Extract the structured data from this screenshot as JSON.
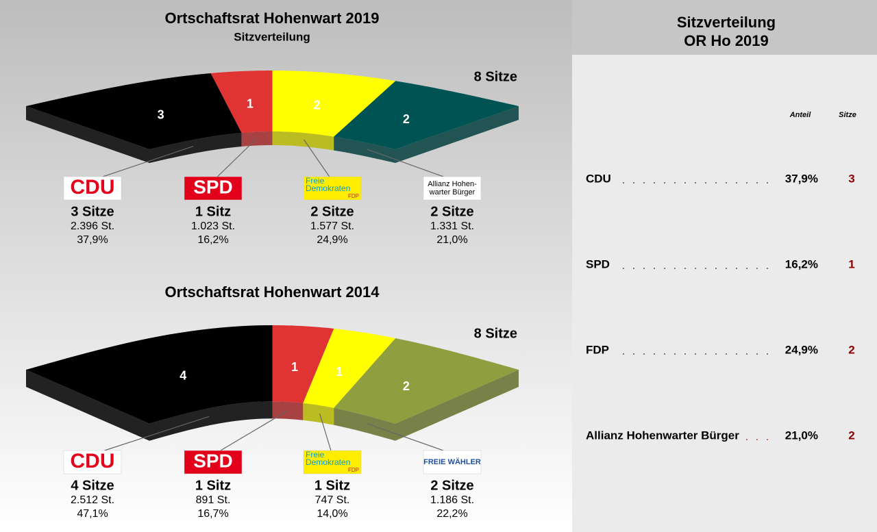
{
  "chart_data": [
    {
      "type": "seat-arc",
      "title": "Ortschaftsrat Hohenwart 2019",
      "subtitle": "Sitzverteilung",
      "total_label": "8 Sitze",
      "logos": [
        [
          "CDU"
        ],
        [
          "SPD"
        ],
        [
          "Freie",
          "Demokraten",
          "FDP"
        ],
        [
          "Allianz Hohen-",
          "warter Bürger"
        ]
      ],
      "values": [
        3,
        1,
        2,
        2
      ],
      "value_labels": [
        "3 Sitze",
        "1 Sitz",
        "2 Sitze",
        "2 Sitze"
      ],
      "vote_labels": [
        "2.396 St.",
        "1.023 St.",
        "1.577 St.",
        "1.331 St."
      ],
      "share_labels": [
        "37,9%",
        "16,2%",
        "24,9%",
        "21,0%"
      ],
      "colors": [
        "#000000",
        "#e03333",
        "#ffff00",
        "#005353"
      ]
    },
    {
      "type": "seat-arc",
      "title": "Ortschaftsrat Hohenwart 2014",
      "total_label": "8 Sitze",
      "logos": [
        [
          "CDU"
        ],
        [
          "SPD"
        ],
        [
          "Freie",
          "Demokraten",
          "FDP"
        ],
        [
          "FREIE WÄHLER"
        ]
      ],
      "values": [
        4,
        1,
        1,
        2
      ],
      "value_labels": [
        "4 Sitze",
        "1 Sitz",
        "1 Sitz",
        "2 Sitze"
      ],
      "vote_labels": [
        "2.512 St.",
        "891 St.",
        "747 St.",
        "1.186 St."
      ],
      "share_labels": [
        "47,1%",
        "16,7%",
        "14,0%",
        "22,2%"
      ],
      "colors": [
        "#000000",
        "#e03333",
        "#ffff00",
        "#8f9e3e"
      ]
    }
  ],
  "table": {
    "title": [
      "Sitzverteilung",
      "OR Ho 2019"
    ],
    "headers": [
      "Anteil",
      "Sitze"
    ],
    "rows": [
      [
        "CDU",
        "37,9%",
        3
      ],
      [
        "SPD",
        "16,2%",
        1
      ],
      [
        "FDP",
        "24,9%",
        2
      ],
      [
        "Allianz Hohenwarter Bürger",
        "21,0%",
        2
      ]
    ]
  }
}
